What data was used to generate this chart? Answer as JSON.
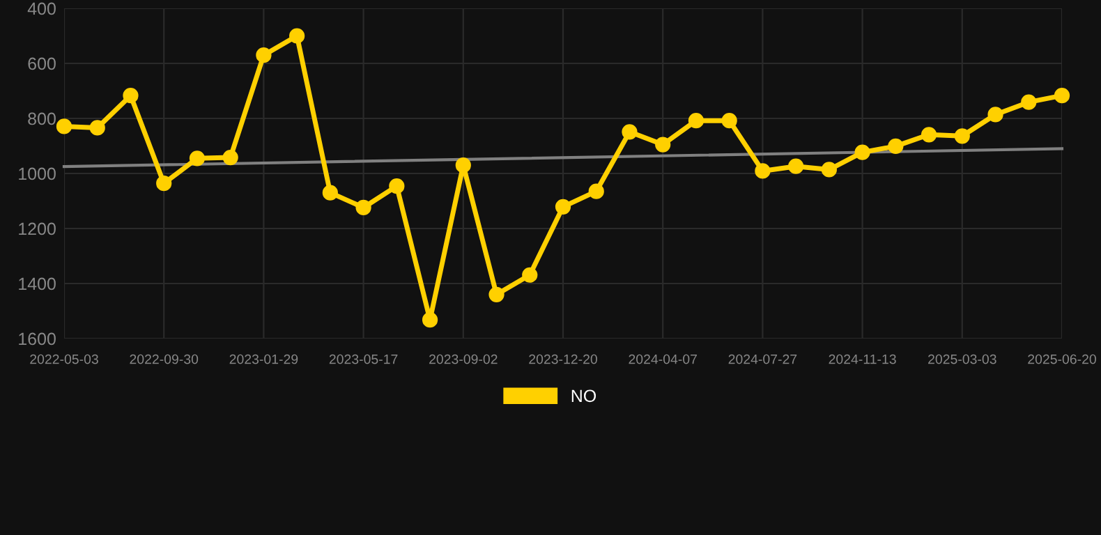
{
  "chart_data": {
    "type": "line",
    "categories": [
      "2022-05-03",
      null,
      null,
      "2022-09-30",
      null,
      null,
      "2023-01-29",
      null,
      null,
      "2023-05-17",
      null,
      null,
      "2023-09-02",
      null,
      null,
      "2023-12-20",
      null,
      null,
      "2024-04-07",
      null,
      null,
      "2024-07-27",
      null,
      null,
      "2024-11-13",
      null,
      null,
      "2025-03-03",
      null,
      null,
      "2025-06-20"
    ],
    "series": [
      {
        "name": "NO",
        "color": "#ffd000",
        "marker": "circle",
        "values": [
          829,
          834,
          717,
          1036,
          945,
          942,
          570,
          500,
          1070,
          1124,
          1046,
          1532,
          970,
          1440,
          1369,
          1121,
          1065,
          849,
          895,
          808,
          808,
          991,
          974,
          986,
          923,
          901,
          859,
          864,
          786,
          741,
          717
        ]
      },
      {
        "type": "line",
        "color": "#808080",
        "marker": "none",
        "values": [
          975,
          null,
          null,
          null,
          null,
          null,
          null,
          null,
          null,
          null,
          null,
          null,
          null,
          null,
          null,
          null,
          null,
          null,
          null,
          null,
          null,
          null,
          null,
          null,
          null,
          null,
          null,
          null,
          null,
          null,
          910
        ]
      }
    ],
    "ylim": [
      1600,
      400
    ],
    "yticks": [
      400,
      600,
      800,
      1000,
      1200,
      1400,
      1600
    ],
    "grid": true,
    "legend": "bottom"
  }
}
